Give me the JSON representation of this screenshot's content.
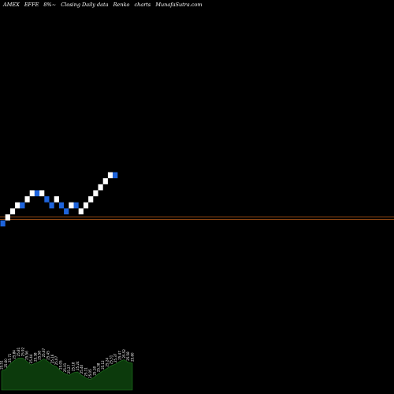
{
  "header": {
    "exchange": "AMEX",
    "symbol": "EFFE",
    "suffix": "8%~",
    "description": "Closing Daily data",
    "chart_kind": "Renko",
    "charts_label": "charts",
    "site": "MunafaSutra.com"
  },
  "colors": {
    "background": "#000000",
    "up_brick": "#ffffff",
    "down_brick": "#1e64dc",
    "ref_line": "#8b4513",
    "volume_fill": "#0c3a0c",
    "volume_stroke": "#1f7a1f",
    "label_text": "#ffffff"
  },
  "chart_data": {
    "type": "renko",
    "title": "",
    "directions": [
      "down",
      "up",
      "up",
      "up",
      "down",
      "up",
      "up",
      "down",
      "up",
      "down",
      "down",
      "up",
      "down",
      "down",
      "up",
      "down",
      "up",
      "up",
      "up",
      "up",
      "up",
      "up",
      "up",
      "down"
    ],
    "levels": [
      0,
      1,
      2,
      3,
      3,
      4,
      5,
      5,
      5,
      4,
      3,
      4,
      3,
      2,
      3,
      3,
      2,
      3,
      4,
      5,
      6,
      7,
      8,
      8
    ],
    "ylim": [
      -1,
      36
    ],
    "reference_levels": [
      1.15,
      1.6
    ],
    "volume": [
      22,
      24,
      30,
      34,
      37,
      37,
      33,
      29,
      31,
      33,
      36,
      33,
      29,
      27,
      22,
      19,
      17,
      20,
      21,
      17,
      14,
      12,
      15,
      19,
      22,
      25,
      28,
      30,
      33,
      35,
      32,
      31
    ],
    "volume_ylim": [
      0,
      50
    ],
    "volume_labels": [
      "25.51",
      "25.60",
      "25.71",
      "25.84",
      "25.81",
      "25.92",
      "25.56",
      "25.44",
      "25.38",
      "25.58",
      "25.67",
      "25.45",
      "25.16",
      "25.07",
      "25.05",
      "25.01",
      "25.27",
      "25.18",
      "25.24",
      "25.40",
      "25.11",
      "25.05",
      "25.18",
      "25.38",
      "25.12",
      "25.24",
      "25.31",
      "25.37",
      "25.47",
      "25.52",
      "25.58",
      "25.60"
    ]
  }
}
